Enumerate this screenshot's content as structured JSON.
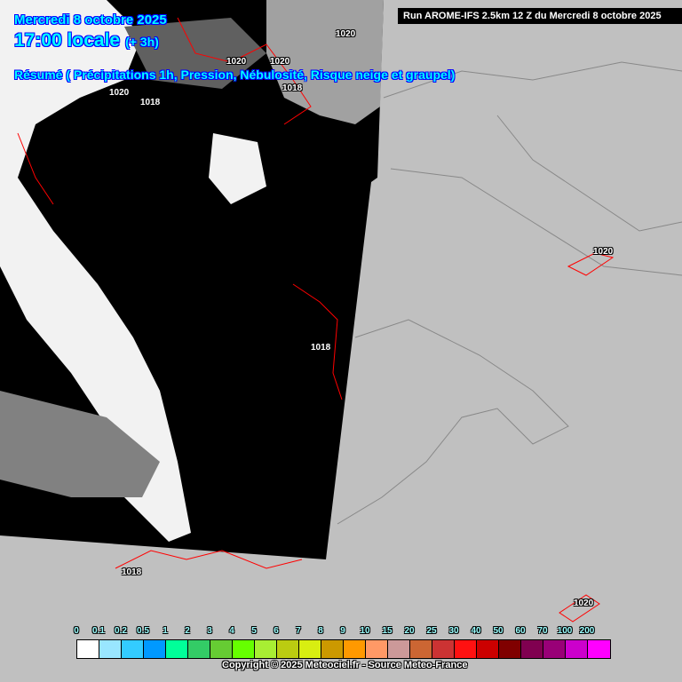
{
  "header": {
    "date": "Mercredi 8 octobre 2025",
    "time": "17:00 locale",
    "offset": "(+ 3h)",
    "summary": "Résumé ( Précipitations 1h, Pression, Nébulosité, Risque neige et graupel)",
    "run": "Run AROME-IFS 2.5km 12 Z du Mercredi 8 octobre 2025"
  },
  "isobars": [
    "1020",
    "1020",
    "1020",
    "1020",
    "1018",
    "1018",
    "1020",
    "1018",
    "1018",
    "1020"
  ],
  "legend": {
    "labels": [
      "0",
      "0.1",
      "0.2",
      "0.5",
      "1",
      "2",
      "3",
      "4",
      "5",
      "6",
      "7",
      "8",
      "9",
      "10",
      "15",
      "20",
      "25",
      "30",
      "40",
      "50",
      "60",
      "70",
      "100",
      "200"
    ],
    "colors": [
      "#ffffff",
      "#99e6ff",
      "#33ccff",
      "#0099ff",
      "#00ff99",
      "#33cc66",
      "#66cc33",
      "#66ff00",
      "#a8ee33",
      "#bbcc11",
      "#d8ee11",
      "#cc9900",
      "#ff9900",
      "#ff9966",
      "#cc9999",
      "#cc6633",
      "#cc3333",
      "#ff1111",
      "#cc0000",
      "#800000",
      "#800050",
      "#990077",
      "#cc00cc",
      "#ff00ff"
    ]
  },
  "colors": {
    "land": "#c0c0c0",
    "cloud_dark": "#000000",
    "isobar": "#ff0000",
    "title": "#00ffff"
  },
  "copyright": "Copyright © 2025 Meteociel.fr - Source Meteo-France"
}
